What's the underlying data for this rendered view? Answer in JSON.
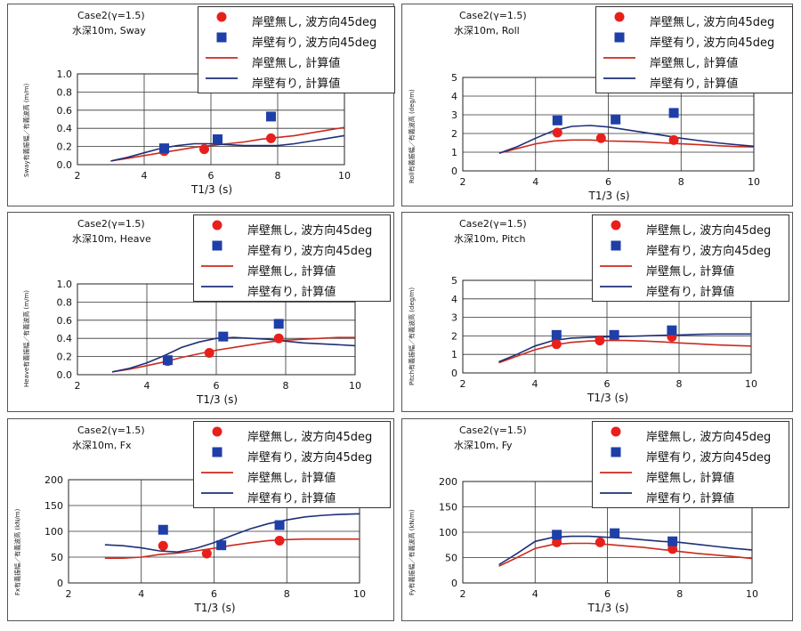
{
  "colors": {
    "nowall": "#e8201c",
    "wall": "#1f3fa8",
    "nowall_line": "#cc2a1e",
    "wall_line": "#1e2f78",
    "grid": "#333333"
  },
  "chart_data": [
    {
      "type": "line",
      "case_label": "Case2(γ=1.5)",
      "depth_label": "水深10m, Sway",
      "ylabel": "Sway有義振幅／有義波高 (m/m)",
      "xlabel": "T1/3 (s)",
      "xlim": [
        2,
        10
      ],
      "ylim": [
        0,
        1.0
      ],
      "x_ticks": [
        "2",
        "4",
        "6",
        "8",
        "10"
      ],
      "y_ticks": [
        "0.0",
        "0.2",
        "0.4",
        "0.6",
        "0.8",
        "1.0"
      ],
      "grid": true,
      "legend": [
        "岸壁無し, 波方向45deg",
        "岸壁有り, 波方向45deg",
        "岸壁無し, 計算値",
        "岸壁有り, 計算値"
      ],
      "series": [
        {
          "name": "岸壁無し, 波方向45deg",
          "kind": "marker-circle",
          "x": [
            4.6,
            5.8,
            7.8
          ],
          "y": [
            0.15,
            0.17,
            0.29
          ]
        },
        {
          "name": "岸壁有り, 波方向45deg",
          "kind": "marker-square",
          "x": [
            4.6,
            6.2,
            7.8
          ],
          "y": [
            0.18,
            0.28,
            0.53
          ]
        },
        {
          "name": "岸壁無し, 計算値",
          "kind": "line-red",
          "x": [
            3,
            3.5,
            4,
            4.5,
            5,
            5.5,
            6,
            6.5,
            7,
            7.5,
            8,
            8.5,
            9,
            9.5,
            10
          ],
          "y": [
            0.04,
            0.07,
            0.1,
            0.13,
            0.16,
            0.19,
            0.21,
            0.23,
            0.25,
            0.28,
            0.3,
            0.32,
            0.35,
            0.38,
            0.41
          ]
        },
        {
          "name": "岸壁有り, 計算値",
          "kind": "line-blue",
          "x": [
            3,
            3.5,
            4,
            4.5,
            5,
            5.5,
            6,
            6.5,
            7,
            7.5,
            8,
            8.5,
            9,
            9.5,
            10
          ],
          "y": [
            0.04,
            0.08,
            0.13,
            0.18,
            0.21,
            0.23,
            0.23,
            0.22,
            0.21,
            0.21,
            0.21,
            0.23,
            0.26,
            0.29,
            0.32
          ]
        }
      ]
    },
    {
      "type": "line",
      "case_label": "Case2(γ=1.5)",
      "depth_label": "水深10m, Roll",
      "ylabel": "Roll有義振幅／有義波高 (deg/m)",
      "xlabel": "T1/3 (s)",
      "xlim": [
        2,
        10
      ],
      "ylim": [
        0,
        5
      ],
      "x_ticks": [
        "2",
        "4",
        "6",
        "8",
        "10"
      ],
      "y_ticks": [
        "0",
        "1",
        "2",
        "3",
        "4",
        "5"
      ],
      "grid": true,
      "legend": [
        "岸壁無し, 波方向45deg",
        "岸壁有り, 波方向45deg",
        "岸壁無し, 計算値",
        "岸壁有り, 計算値"
      ],
      "series": [
        {
          "name": "岸壁無し, 波方向45deg",
          "kind": "marker-circle",
          "x": [
            4.6,
            5.8,
            7.8
          ],
          "y": [
            2.05,
            1.75,
            1.65
          ]
        },
        {
          "name": "岸壁有り, 波方向45deg",
          "kind": "marker-square",
          "x": [
            4.6,
            6.2,
            7.8
          ],
          "y": [
            2.7,
            2.75,
            3.1
          ]
        },
        {
          "name": "岸壁無し, 計算値",
          "kind": "line-red",
          "x": [
            3,
            3.5,
            4,
            4.5,
            5,
            5.5,
            6,
            6.5,
            7,
            7.5,
            8,
            8.5,
            9,
            9.5,
            10
          ],
          "y": [
            0.95,
            1.2,
            1.45,
            1.6,
            1.65,
            1.65,
            1.6,
            1.58,
            1.55,
            1.5,
            1.45,
            1.4,
            1.35,
            1.3,
            1.28
          ]
        },
        {
          "name": "岸壁有り, 計算値",
          "kind": "line-blue",
          "x": [
            3,
            3.5,
            4,
            4.5,
            5,
            5.5,
            6,
            6.5,
            7,
            7.5,
            8,
            8.5,
            9,
            9.5,
            10
          ],
          "y": [
            0.95,
            1.3,
            1.75,
            2.15,
            2.38,
            2.43,
            2.35,
            2.2,
            2.05,
            1.9,
            1.75,
            1.62,
            1.5,
            1.4,
            1.32
          ]
        }
      ]
    },
    {
      "type": "line",
      "case_label": "Case2(γ=1.5)",
      "depth_label": "水深10m, Heave",
      "ylabel": "Heave有義振幅／有義波高 (m/m)",
      "xlabel": "T1/3 (s)",
      "xlim": [
        2,
        10
      ],
      "ylim": [
        0,
        1.0
      ],
      "x_ticks": [
        "2",
        "4",
        "6",
        "8",
        "10"
      ],
      "y_ticks": [
        "0.0",
        "0.2",
        "0.4",
        "0.6",
        "0.8",
        "1.0"
      ],
      "grid": true,
      "legend": [
        "岸壁無し, 波方向45deg",
        "岸壁有り, 波方向45deg",
        "岸壁無し, 計算値",
        "岸壁有り, 計算値"
      ],
      "series": [
        {
          "name": "岸壁無し, 波方向45deg",
          "kind": "marker-circle",
          "x": [
            4.6,
            5.8,
            7.8
          ],
          "y": [
            0.15,
            0.24,
            0.4
          ]
        },
        {
          "name": "岸壁有り, 波方向45deg",
          "kind": "marker-square",
          "x": [
            4.6,
            6.2,
            7.8
          ],
          "y": [
            0.16,
            0.42,
            0.56
          ]
        },
        {
          "name": "岸壁無し, 計算値",
          "kind": "line-red",
          "x": [
            3,
            3.5,
            4,
            4.5,
            5,
            5.5,
            6,
            6.5,
            7,
            7.5,
            8,
            8.5,
            9,
            9.5,
            10
          ],
          "y": [
            0.03,
            0.06,
            0.1,
            0.14,
            0.19,
            0.23,
            0.27,
            0.3,
            0.33,
            0.36,
            0.38,
            0.39,
            0.4,
            0.41,
            0.41
          ]
        },
        {
          "name": "岸壁有り, 計算値",
          "kind": "line-blue",
          "x": [
            3,
            3.5,
            4,
            4.5,
            5,
            5.5,
            6,
            6.5,
            7,
            7.5,
            8,
            8.5,
            9,
            9.5,
            10
          ],
          "y": [
            0.03,
            0.07,
            0.13,
            0.21,
            0.3,
            0.36,
            0.4,
            0.41,
            0.4,
            0.39,
            0.37,
            0.35,
            0.34,
            0.33,
            0.32
          ]
        }
      ]
    },
    {
      "type": "line",
      "case_label": "Case2(γ=1.5)",
      "depth_label": "水深10m, Pitch",
      "ylabel": "Pitch有義振幅／有義波高 (deg/m)",
      "xlabel": "T1/3 (s)",
      "xlim": [
        2,
        10
      ],
      "ylim": [
        0,
        5
      ],
      "x_ticks": [
        "2",
        "4",
        "6",
        "8",
        "10"
      ],
      "y_ticks": [
        "0",
        "1",
        "2",
        "3",
        "4",
        "5"
      ],
      "grid": true,
      "legend": [
        "岸壁無し, 波方向45deg",
        "岸壁有り, 波方向45deg",
        "岸壁無し, 計算値",
        "岸壁有り, 計算値"
      ],
      "series": [
        {
          "name": "岸壁無し, 波方向45deg",
          "kind": "marker-circle",
          "x": [
            4.6,
            5.8,
            7.8
          ],
          "y": [
            1.55,
            1.75,
            1.95
          ]
        },
        {
          "name": "岸壁有り, 波方向45deg",
          "kind": "marker-square",
          "x": [
            4.6,
            6.2,
            7.8
          ],
          "y": [
            2.05,
            2.05,
            2.3
          ]
        },
        {
          "name": "岸壁無し, 計算値",
          "kind": "line-red",
          "x": [
            3,
            3.5,
            4,
            4.5,
            5,
            5.5,
            6,
            6.5,
            7,
            7.5,
            8,
            8.5,
            9,
            9.5,
            10
          ],
          "y": [
            0.55,
            0.9,
            1.25,
            1.5,
            1.65,
            1.72,
            1.75,
            1.75,
            1.72,
            1.68,
            1.62,
            1.57,
            1.52,
            1.48,
            1.45
          ]
        },
        {
          "name": "岸壁有り, 計算値",
          "kind": "line-blue",
          "x": [
            3,
            3.5,
            4,
            4.5,
            5,
            5.5,
            6,
            6.5,
            7,
            7.5,
            8,
            8.5,
            9,
            9.5,
            10
          ],
          "y": [
            0.6,
            1.0,
            1.45,
            1.75,
            1.88,
            1.92,
            1.95,
            1.97,
            2.0,
            2.03,
            2.05,
            2.08,
            2.1,
            2.1,
            2.1
          ]
        }
      ]
    },
    {
      "type": "line",
      "case_label": "Case2(γ=1.5)",
      "depth_label": "水深10m, Fx",
      "ylabel": "Fx有義振幅／有義波高 (kN/m)",
      "xlabel": "T1/3 (s)",
      "xlim": [
        2,
        10
      ],
      "ylim": [
        0,
        200
      ],
      "x_ticks": [
        "2",
        "4",
        "6",
        "8",
        "10"
      ],
      "y_ticks": [
        "0",
        "50",
        "100",
        "150",
        "200"
      ],
      "grid": true,
      "legend": [
        "岸壁無し, 波方向45deg",
        "岸壁有り, 波方向45deg",
        "岸壁無し, 計算値",
        "岸壁有り, 計算値"
      ],
      "series": [
        {
          "name": "岸壁無し, 波方向45deg",
          "kind": "marker-circle",
          "x": [
            4.6,
            5.8,
            7.8
          ],
          "y": [
            72,
            57,
            82
          ]
        },
        {
          "name": "岸壁有り, 波方向45deg",
          "kind": "marker-square",
          "x": [
            4.6,
            6.2,
            7.8
          ],
          "y": [
            103,
            73,
            112
          ]
        },
        {
          "name": "岸壁無し, 計算値",
          "kind": "line-red",
          "x": [
            3,
            3.5,
            4,
            4.5,
            5,
            5.5,
            6,
            6.5,
            7,
            7.5,
            8,
            8.5,
            9,
            9.5,
            10
          ],
          "y": [
            48,
            48,
            50,
            55,
            58,
            62,
            67,
            73,
            78,
            82,
            84,
            85,
            85,
            85,
            85
          ]
        },
        {
          "name": "岸壁有り, 計算値",
          "kind": "line-blue",
          "x": [
            3,
            3.5,
            4,
            4.5,
            5,
            5.5,
            6,
            6.5,
            7,
            7.5,
            8,
            8.5,
            9,
            9.5,
            10
          ],
          "y": [
            74,
            72,
            68,
            62,
            60,
            67,
            78,
            92,
            105,
            115,
            122,
            128,
            131,
            133,
            134
          ]
        }
      ]
    },
    {
      "type": "line",
      "case_label": "Case2(γ=1.5)",
      "depth_label": "水深10m, Fy",
      "ylabel": "Fy有義振幅／有義波高 (kN/m)",
      "xlabel": "T1/3 (s)",
      "xlim": [
        2,
        10
      ],
      "ylim": [
        0,
        200
      ],
      "x_ticks": [
        "2",
        "4",
        "6",
        "8",
        "10"
      ],
      "y_ticks": [
        "0",
        "50",
        "100",
        "150",
        "200"
      ],
      "grid": true,
      "legend": [
        "岸壁無し, 波方向45deg",
        "岸壁有り, 波方向45deg",
        "岸壁無し, 計算値",
        "岸壁有り, 計算値"
      ],
      "series": [
        {
          "name": "岸壁無し, 波方向45deg",
          "kind": "marker-circle",
          "x": [
            4.6,
            5.8,
            7.8
          ],
          "y": [
            80,
            80,
            67
          ]
        },
        {
          "name": "岸壁有り, 波方向45deg",
          "kind": "marker-square",
          "x": [
            4.6,
            6.2,
            7.8
          ],
          "y": [
            95,
            98,
            82
          ]
        },
        {
          "name": "岸壁無し, 計算値",
          "kind": "line-red",
          "x": [
            3,
            3.5,
            4,
            4.5,
            5,
            5.5,
            6,
            6.5,
            7,
            7.5,
            8,
            8.5,
            9,
            9.5,
            10
          ],
          "y": [
            33,
            50,
            68,
            76,
            78,
            78,
            76,
            73,
            70,
            66,
            62,
            58,
            55,
            52,
            48
          ]
        },
        {
          "name": "岸壁有り, 計算値",
          "kind": "line-blue",
          "x": [
            3,
            3.5,
            4,
            4.5,
            5,
            5.5,
            6,
            6.5,
            7,
            7.5,
            8,
            8.5,
            9,
            9.5,
            10
          ],
          "y": [
            36,
            58,
            82,
            90,
            92,
            92,
            90,
            88,
            85,
            82,
            80,
            76,
            72,
            68,
            65
          ]
        }
      ]
    }
  ]
}
